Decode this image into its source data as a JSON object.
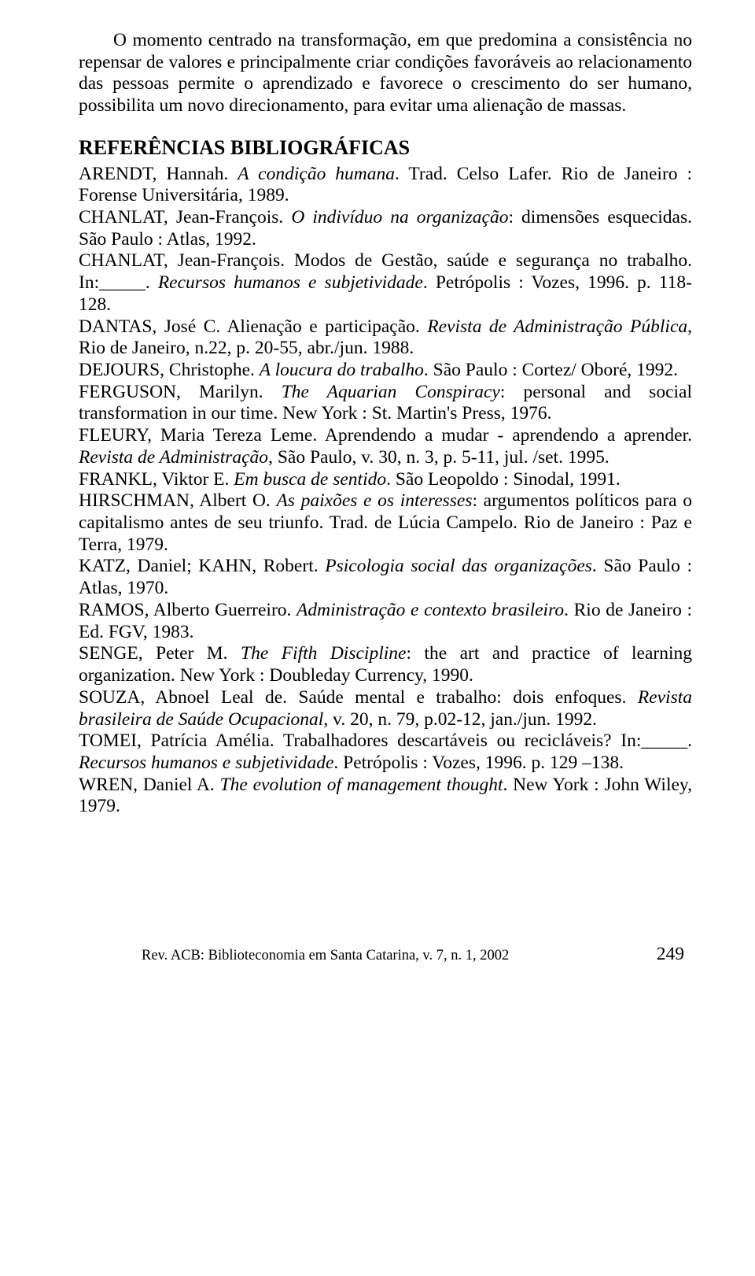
{
  "paragraph": "O momento centrado na transformação, em que predomina a consistência no repensar de valores e principalmente criar condições favoráveis ao relacionamento das pessoas permite o aprendizado e favorece o crescimento do ser humano, possibilita um novo direcionamento, para evitar uma alienação de massas.",
  "heading": "REFERÊNCIAS BIBLIOGRÁFICAS",
  "refs": {
    "r01a": "ARENDT, Hannah. ",
    "r01i": "A condição humana",
    "r01b": ". Trad. Celso Lafer. Rio de Janeiro : Forense Universitária, 1989.",
    "r02a": "CHANLAT, Jean-François. ",
    "r02i": "O indivíduo na organização",
    "r02b": ": dimensões esquecidas. São Paulo : Atlas, 1992.",
    "r03a": "CHANLAT, Jean-François. Modos de Gestão, saúde e segurança no trabalho. In:_____. ",
    "r03i": "Recursos humanos e subjetividade",
    "r03b": ". Petrópolis : Vozes, 1996. p. 118- 128.",
    "r04a": "DANTAS, José C. Alienação e participação. ",
    "r04i": "Revista de Administração Pública",
    "r04b": ", Rio de Janeiro, n.22, p. 20-55, abr./jun. 1988.",
    "r05a": "DEJOURS, Christophe. ",
    "r05i": "A loucura do trabalho",
    "r05b": ". São Paulo : Cortez/ Oboré, 1992.",
    "r06a": "FERGUSON, Marilyn. ",
    "r06i": "The Aquarian Conspiracy",
    "r06b": ": personal and social transformation in our time. New York : St. Martin's Press, 1976.",
    "r07a": "FLEURY, Maria Tereza Leme. Aprendendo a mudar - aprendendo a aprender. ",
    "r07i": "Revista de Administração",
    "r07b": ", São Paulo, v. 30, n. 3, p. 5-11, jul. /set. 1995.",
    "r08a": "FRANKL, Viktor E. ",
    "r08i": "Em busca de sentido",
    "r08b": ". São Leopoldo : Sinodal, 1991.",
    "r09a": "HIRSCHMAN, Albert O. ",
    "r09i": "As paixões e os interesses",
    "r09b": ": argumentos políticos para o capitalismo antes de seu triunfo. Trad. de Lúcia Campelo. Rio de Janeiro : Paz e Terra, 1979.",
    "r10a": "KATZ, Daniel; KAHN, Robert. ",
    "r10i": "Psicologia social das organizações",
    "r10b": ". São Paulo : Atlas, 1970.",
    "r11a": "RAMOS, Alberto Guerreiro. ",
    "r11i": "Administração e contexto brasileiro",
    "r11b": ". Rio de Janeiro : Ed.  FGV, 1983.",
    "r12a": "SENGE, Peter M. ",
    "r12i": "The Fifth Discipline",
    "r12b": ": the art and practice of learning organization. New York : Doubleday Currency, 1990.",
    "r13a": "SOUZA, Abnoel Leal de. Saúde mental e trabalho: dois enfoques. ",
    "r13i": "Revista brasileira de Saúde Ocupacional",
    "r13b": ", v. 20, n. 79, p.02-12, jan./jun. 1992.",
    "r14a": "TOMEI, Patrícia Amélia. Trabalhadores descartáveis ou recicláveis? In:_____. ",
    "r14i": "Recursos humanos e subjetividade",
    "r14b": ". Petrópolis : Vozes, 1996. p. 129 –138.",
    "r15a": "WREN, Daniel A. ",
    "r15i": "The evolution of management thought",
    "r15b": ". New York : John Wiley, 1979."
  },
  "footer": {
    "citation": "Rev. ACB: Biblioteconomia em Santa Catarina, v. 7, n. 1, 2002",
    "page": "249"
  }
}
